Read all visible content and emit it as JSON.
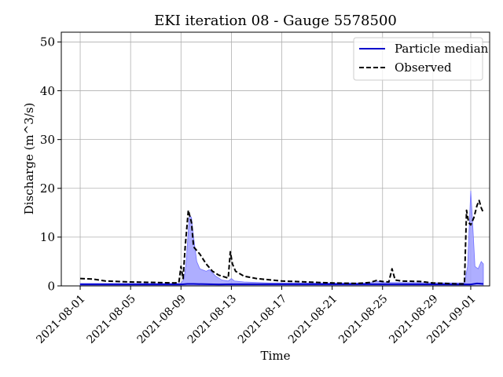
{
  "chart_data": {
    "type": "line",
    "title": "EKI iteration 08 - Gauge 5578500",
    "xlabel": "Time",
    "ylabel": "Discharge (m^3/s)",
    "xlim": [
      "2021-07-30T12:00",
      "2021-09-02T12:00"
    ],
    "ylim": [
      0,
      52
    ],
    "xticks": [
      "2021-08-01",
      "2021-08-05",
      "2021-08-09",
      "2021-08-13",
      "2021-08-17",
      "2021-08-21",
      "2021-08-25",
      "2021-08-29",
      "2021-09-01"
    ],
    "yticks": [
      0,
      10,
      20,
      30,
      40,
      50
    ],
    "grid": true,
    "legend_position": "upper-right",
    "colors": {
      "median": "#0000cc",
      "band": "#a0a0ff",
      "observed": "#000000"
    },
    "series": [
      {
        "name": "Particle median",
        "style": "solid",
        "points": [
          [
            "2021-08-01T00:00",
            0.3
          ],
          [
            "2021-08-09T00:00",
            0.3
          ],
          [
            "2021-08-09T12:00",
            0.4
          ],
          [
            "2021-08-10T00:00",
            0.4
          ],
          [
            "2021-08-12T00:00",
            0.3
          ],
          [
            "2021-08-13T00:00",
            0.35
          ],
          [
            "2021-08-25T00:00",
            0.35
          ],
          [
            "2021-08-31T00:00",
            0.3
          ],
          [
            "2021-09-01T00:00",
            0.3
          ],
          [
            "2021-09-01T12:00",
            0.5
          ],
          [
            "2021-09-02T00:00",
            0.4
          ]
        ]
      },
      {
        "name": "Observed",
        "style": "dashed",
        "points": [
          [
            "2021-08-01T00:00",
            1.5
          ],
          [
            "2021-08-02T00:00",
            1.4
          ],
          [
            "2021-08-03T00:00",
            1.0
          ],
          [
            "2021-08-05T00:00",
            0.8
          ],
          [
            "2021-08-07T00:00",
            0.7
          ],
          [
            "2021-08-08T12:00",
            0.6
          ],
          [
            "2021-08-08T20:00",
            0.7
          ],
          [
            "2021-08-09T00:00",
            4.0
          ],
          [
            "2021-08-09T04:00",
            1.5
          ],
          [
            "2021-08-09T08:00",
            8.0
          ],
          [
            "2021-08-09T14:00",
            15.5
          ],
          [
            "2021-08-09T20:00",
            13.0
          ],
          [
            "2021-08-10T00:00",
            8.0
          ],
          [
            "2021-08-10T12:00",
            6.5
          ],
          [
            "2021-08-11T00:00",
            4.5
          ],
          [
            "2021-08-11T12:00",
            3.0
          ],
          [
            "2021-08-12T00:00",
            2.2
          ],
          [
            "2021-08-12T12:00",
            1.8
          ],
          [
            "2021-08-12T18:00",
            1.6
          ],
          [
            "2021-08-12T22:00",
            7.0
          ],
          [
            "2021-08-13T02:00",
            4.5
          ],
          [
            "2021-08-13T08:00",
            3.0
          ],
          [
            "2021-08-14T00:00",
            2.0
          ],
          [
            "2021-08-15T00:00",
            1.5
          ],
          [
            "2021-08-17T00:00",
            1.0
          ],
          [
            "2021-08-19T00:00",
            0.8
          ],
          [
            "2021-08-21T00:00",
            0.6
          ],
          [
            "2021-08-23T00:00",
            0.5
          ],
          [
            "2021-08-24T00:00",
            0.7
          ],
          [
            "2021-08-24T12:00",
            1.1
          ],
          [
            "2021-08-25T00:00",
            0.9
          ],
          [
            "2021-08-25T12:00",
            0.8
          ],
          [
            "2021-08-25T18:00",
            3.5
          ],
          [
            "2021-08-26T00:00",
            1.2
          ],
          [
            "2021-08-26T12:00",
            1.0
          ],
          [
            "2021-08-28T00:00",
            0.9
          ],
          [
            "2021-08-29T00:00",
            0.6
          ],
          [
            "2021-08-30T00:00",
            0.5
          ],
          [
            "2021-08-31T00:00",
            0.4
          ],
          [
            "2021-08-31T12:00",
            0.4
          ],
          [
            "2021-08-31T16:00",
            15.5
          ],
          [
            "2021-08-31T20:00",
            13.0
          ],
          [
            "2021-09-01T00:00",
            12.5
          ],
          [
            "2021-09-01T06:00",
            14.0
          ],
          [
            "2021-09-01T12:00",
            16.5
          ],
          [
            "2021-09-01T16:00",
            17.5
          ],
          [
            "2021-09-01T20:00",
            16.0
          ],
          [
            "2021-09-02T00:00",
            15.0
          ]
        ]
      }
    ],
    "band": [
      [
        "2021-08-01T00:00",
        0.5
      ],
      [
        "2021-08-09T00:00",
        0.5
      ],
      [
        "2021-08-09T06:00",
        1.5
      ],
      [
        "2021-08-09T10:00",
        5.0
      ],
      [
        "2021-08-09T16:00",
        14.5
      ],
      [
        "2021-08-09T20:00",
        14.0
      ],
      [
        "2021-08-10T00:00",
        10.0
      ],
      [
        "2021-08-10T06:00",
        5.0
      ],
      [
        "2021-08-10T12:00",
        3.5
      ],
      [
        "2021-08-11T00:00",
        3.0
      ],
      [
        "2021-08-11T06:00",
        3.3
      ],
      [
        "2021-08-11T18:00",
        2.0
      ],
      [
        "2021-08-12T06:00",
        1.2
      ],
      [
        "2021-08-12T18:00",
        1.0
      ],
      [
        "2021-08-13T00:00",
        1.5
      ],
      [
        "2021-08-13T06:00",
        1.0
      ],
      [
        "2021-08-14T00:00",
        0.8
      ],
      [
        "2021-08-16T00:00",
        0.6
      ],
      [
        "2021-08-24T00:00",
        0.6
      ],
      [
        "2021-08-24T12:00",
        1.0
      ],
      [
        "2021-08-25T00:00",
        0.7
      ],
      [
        "2021-08-31T12:00",
        0.6
      ],
      [
        "2021-08-31T18:00",
        4.0
      ],
      [
        "2021-09-01T00:00",
        19.5
      ],
      [
        "2021-09-01T04:00",
        12.0
      ],
      [
        "2021-09-01T08:00",
        4.0
      ],
      [
        "2021-09-01T14:00",
        3.5
      ],
      [
        "2021-09-01T20:00",
        5.0
      ],
      [
        "2021-09-02T00:00",
        4.5
      ]
    ]
  }
}
